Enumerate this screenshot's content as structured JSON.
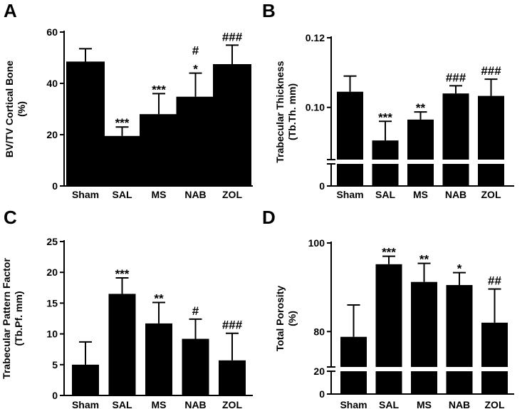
{
  "chart_data": [
    {
      "type": "bar",
      "panel": "A",
      "ylabel": [
        "BV/TV Cortical Bone",
        "(%)"
      ],
      "categories": [
        "Sham",
        "SAL",
        "MS",
        "NAB",
        "ZOL"
      ],
      "values": [
        48.5,
        19.5,
        28,
        34.8,
        47.5
      ],
      "errors": [
        5,
        3.5,
        8,
        9.2,
        7.4
      ],
      "significance": [
        [],
        [
          "***"
        ],
        [
          "***"
        ],
        [
          "#",
          "*"
        ],
        [
          "###"
        ]
      ],
      "ylim": [
        0,
        60
      ],
      "yticks": [
        0,
        20,
        40,
        60
      ],
      "ytick_labels": [
        "0",
        "20",
        "40",
        "60"
      ]
    },
    {
      "type": "bar",
      "panel": "B",
      "ylabel": [
        "Trabecular Thickness",
        "(Tb.Th. mm)"
      ],
      "categories": [
        "Sham",
        "SAL",
        "MS",
        "NAB",
        "ZOL"
      ],
      "values": [
        0.1045,
        0.0905,
        0.0965,
        0.104,
        0.1033
      ],
      "errors": [
        0.0045,
        0.0055,
        0.0022,
        0.0022,
        0.0048
      ],
      "significance": [
        [],
        [
          "***"
        ],
        [
          "**"
        ],
        [
          "###"
        ],
        [
          "###"
        ]
      ],
      "ylim": [
        0.085,
        0.12
      ],
      "axis_break": true,
      "yticks": [
        0,
        0.1,
        0.12
      ],
      "ytick_labels": [
        "0",
        "0.10",
        "0.12"
      ]
    },
    {
      "type": "bar",
      "panel": "C",
      "ylabel": [
        "Trabecular Pattern Factor",
        "(Tb.Pf. mm)"
      ],
      "categories": [
        "Sham",
        "SAL",
        "MS",
        "NAB",
        "ZOL"
      ],
      "values": [
        5,
        16.5,
        11.7,
        9.2,
        5.7
      ],
      "errors": [
        3.7,
        2.6,
        3.4,
        3.2,
        4.4
      ],
      "significance": [
        [],
        [
          "***"
        ],
        [
          "**"
        ],
        [
          "#"
        ],
        [
          "###"
        ]
      ],
      "ylim": [
        0,
        25
      ],
      "yticks": [
        0,
        5,
        10,
        15,
        20,
        25
      ],
      "ytick_labels": [
        "0",
        "5",
        "10",
        "15",
        "20",
        "25"
      ]
    },
    {
      "type": "bar",
      "panel": "D",
      "ylabel": [
        "Total Porosity",
        "(%)"
      ],
      "categories": [
        "Sham",
        "SAL",
        "MS",
        "NAB",
        "ZOL"
      ],
      "values": [
        78.8,
        95.2,
        91.2,
        90.5,
        82
      ],
      "errors": [
        7.2,
        1.8,
        4.2,
        2.8,
        7.6
      ],
      "significance": [
        [],
        [
          "***"
        ],
        [
          "**"
        ],
        [
          "*"
        ],
        [
          "##"
        ]
      ],
      "ylim": [
        72,
        100
      ],
      "axis_break": true,
      "yticks": [
        0,
        20,
        80,
        100
      ],
      "ytick_labels": [
        "0",
        "20",
        "80",
        "100"
      ]
    }
  ]
}
